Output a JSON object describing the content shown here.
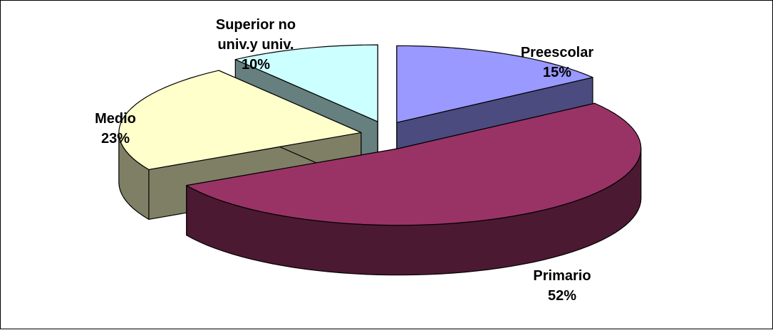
{
  "chart_data": {
    "type": "pie",
    "style": "3d-exploded",
    "title": "",
    "slices": [
      {
        "label_lines": [
          "Preescolar"
        ],
        "value": 15,
        "percent_label": "15%",
        "top_color": "#9999ff",
        "side_color": "#4b4b7f"
      },
      {
        "label_lines": [
          "Primario"
        ],
        "value": 52,
        "percent_label": "52%",
        "top_color": "#993366",
        "side_color": "#4c1932"
      },
      {
        "label_lines": [
          "Medio"
        ],
        "value": 23,
        "percent_label": "23%",
        "top_color": "#ffffcc",
        "side_color": "#7f7f66"
      },
      {
        "label_lines": [
          "Superior no",
          "univ.y univ."
        ],
        "value": 10,
        "percent_label": "10%",
        "top_color": "#ccffff",
        "side_color": "#667f7f"
      }
    ]
  }
}
